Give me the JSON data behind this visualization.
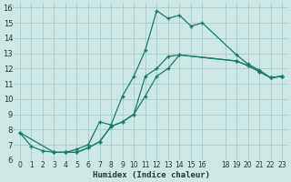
{
  "xlabel": "Humidex (Indice chaleur)",
  "bg_color": "#cce8e5",
  "grid_color": "#aacfcc",
  "line_color": "#1a7a6e",
  "xlim": [
    -0.5,
    23.5
  ],
  "ylim": [
    6,
    16.3
  ],
  "xticks": [
    0,
    1,
    2,
    3,
    4,
    5,
    6,
    7,
    8,
    9,
    10,
    11,
    12,
    13,
    14,
    15,
    16,
    18,
    19,
    20,
    21,
    22,
    23
  ],
  "yticks": [
    6,
    7,
    8,
    9,
    10,
    11,
    12,
    13,
    14,
    15,
    16
  ],
  "series": [
    {
      "x": [
        0,
        1,
        2,
        3,
        4,
        5,
        6,
        7,
        8,
        9,
        10,
        11,
        12,
        13,
        14,
        15,
        16,
        19,
        20,
        21,
        22,
        23
      ],
      "y": [
        7.8,
        6.9,
        6.6,
        6.5,
        6.5,
        6.7,
        7.0,
        8.5,
        8.3,
        10.2,
        11.5,
        13.2,
        15.8,
        15.3,
        15.5,
        14.8,
        15.0,
        12.9,
        12.3,
        11.9,
        11.4,
        11.5
      ]
    },
    {
      "x": [
        3,
        4,
        5,
        6,
        7,
        8,
        9,
        10,
        11,
        12,
        13,
        14,
        19,
        20,
        21,
        22,
        23
      ],
      "y": [
        6.5,
        6.5,
        6.5,
        6.8,
        7.2,
        8.2,
        8.5,
        9.0,
        11.5,
        12.0,
        12.8,
        12.9,
        12.5,
        12.2,
        11.8,
        11.4,
        11.5
      ]
    },
    {
      "x": [
        0,
        3,
        4,
        5,
        6,
        7,
        8,
        9,
        10,
        11,
        12,
        13,
        14,
        19,
        20,
        21,
        22,
        23
      ],
      "y": [
        7.8,
        6.5,
        6.5,
        6.5,
        6.8,
        7.2,
        8.2,
        8.5,
        9.0,
        10.2,
        11.5,
        12.0,
        12.9,
        12.5,
        12.2,
        11.8,
        11.4,
        11.5
      ]
    }
  ]
}
